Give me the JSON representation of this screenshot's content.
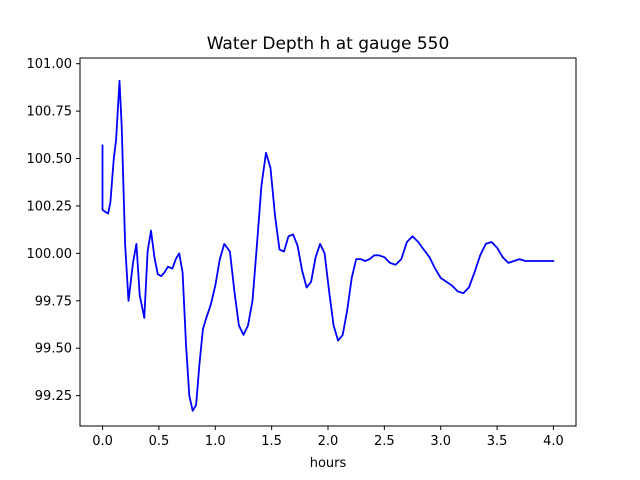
{
  "chart_data": {
    "type": "line",
    "title": "Water Depth h at gauge 550",
    "xlabel": "hours",
    "ylabel": "",
    "xlim": [
      -0.2,
      4.2
    ],
    "ylim": [
      99.09,
      101.03
    ],
    "xticks": [
      0.0,
      0.5,
      1.0,
      1.5,
      2.0,
      2.5,
      3.0,
      3.5,
      4.0
    ],
    "xtick_labels": [
      "0.0",
      "0.5",
      "1.0",
      "1.5",
      "2.0",
      "2.5",
      "3.0",
      "3.5",
      "4.0"
    ],
    "yticks": [
      99.25,
      99.5,
      99.75,
      100.0,
      100.25,
      100.5,
      100.75,
      101.0
    ],
    "ytick_labels": [
      "99.25",
      "99.50",
      "99.75",
      "100.00",
      "100.25",
      "100.50",
      "100.75",
      "101.00"
    ],
    "grid": false,
    "series": [
      {
        "color": "#0000ff",
        "x": [
          0.0,
          0.0,
          0.02,
          0.05,
          0.07,
          0.1,
          0.12,
          0.15,
          0.17,
          0.2,
          0.23,
          0.27,
          0.3,
          0.33,
          0.37,
          0.4,
          0.43,
          0.46,
          0.49,
          0.52,
          0.55,
          0.58,
          0.62,
          0.65,
          0.68,
          0.71,
          0.74,
          0.77,
          0.8,
          0.83,
          0.86,
          0.89,
          0.92,
          0.96,
          1.0,
          1.04,
          1.08,
          1.13,
          1.17,
          1.21,
          1.25,
          1.29,
          1.33,
          1.37,
          1.41,
          1.45,
          1.49,
          1.53,
          1.57,
          1.61,
          1.65,
          1.69,
          1.73,
          1.77,
          1.81,
          1.85,
          1.89,
          1.93,
          1.97,
          2.01,
          2.05,
          2.09,
          2.13,
          2.17,
          2.21,
          2.25,
          2.29,
          2.33,
          2.37,
          2.41,
          2.45,
          2.5,
          2.55,
          2.6,
          2.65,
          2.7,
          2.75,
          2.8,
          2.85,
          2.9,
          2.95,
          3.0,
          3.05,
          3.1,
          3.15,
          3.2,
          3.25,
          3.3,
          3.35,
          3.4,
          3.45,
          3.5,
          3.55,
          3.6,
          3.65,
          3.7,
          3.75,
          3.8,
          3.85,
          3.9,
          3.95,
          4.0
        ],
        "values": [
          100.57,
          100.23,
          100.22,
          100.21,
          100.27,
          100.5,
          100.6,
          100.91,
          100.67,
          100.05,
          99.75,
          99.95,
          100.05,
          99.78,
          99.66,
          100.01,
          100.12,
          99.98,
          99.89,
          99.88,
          99.9,
          99.93,
          99.92,
          99.97,
          100.0,
          99.9,
          99.52,
          99.25,
          99.17,
          99.2,
          99.42,
          99.6,
          99.66,
          99.73,
          99.83,
          99.97,
          100.05,
          100.01,
          99.8,
          99.62,
          99.57,
          99.62,
          99.75,
          100.05,
          100.36,
          100.53,
          100.45,
          100.2,
          100.02,
          100.01,
          100.09,
          100.1,
          100.04,
          99.91,
          99.82,
          99.85,
          99.98,
          100.05,
          100.0,
          99.8,
          99.62,
          99.54,
          99.57,
          99.7,
          99.87,
          99.97,
          99.97,
          99.96,
          99.97,
          99.99,
          99.99,
          99.98,
          99.95,
          99.94,
          99.97,
          100.06,
          100.09,
          100.06,
          100.02,
          99.98,
          99.92,
          99.87,
          99.85,
          99.83,
          99.8,
          99.79,
          99.82,
          99.9,
          99.99,
          100.05,
          100.06,
          100.03,
          99.98,
          99.95,
          99.96,
          99.97,
          99.96,
          99.96,
          99.96,
          99.96,
          99.96,
          99.96
        ]
      }
    ]
  }
}
